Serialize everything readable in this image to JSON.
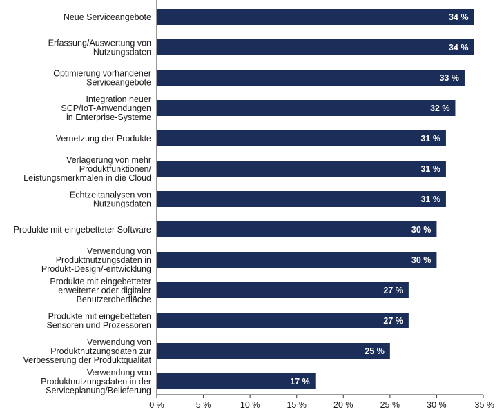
{
  "chart_data": {
    "type": "bar",
    "orientation": "horizontal",
    "categories": [
      [
        "Neue Serviceangebote"
      ],
      [
        "Erfassung/Auswertung von",
        "Nutzungsdaten"
      ],
      [
        "Optimierung vorhandener",
        "Serviceangebote"
      ],
      [
        "Integration neuer",
        "SCP/IoT-Anwendungen",
        "in Enterprise-Systeme"
      ],
      [
        "Vernetzung der Produkte"
      ],
      [
        "Verlagerung von mehr",
        "Produktfunktionen/",
        "Leistungsmerkmalen in die Cloud"
      ],
      [
        "Echtzeitanalysen von",
        "Nutzungsdaten"
      ],
      [
        "Produkte mit eingebetteter Software"
      ],
      [
        "Verwendung von",
        "Produktnutzungsdaten in",
        "Produkt-Design/-entwicklung"
      ],
      [
        "Produkte mit eingebetteter",
        "erweiterter oder digitaler",
        "Benutzeroberfläche"
      ],
      [
        "Produkte mit eingebetteten",
        "Sensoren und Prozessoren"
      ],
      [
        "Verwendung von",
        "Produktnutzungsdaten zur",
        "Verbesserung der Produktqualität"
      ],
      [
        "Verwendung von",
        "Produktnutzungsdaten in der",
        "Serviceplanung/Belieferung"
      ]
    ],
    "values": [
      34,
      34,
      33,
      32,
      31,
      31,
      31,
      30,
      30,
      27,
      27,
      25,
      17
    ],
    "value_labels": [
      "34 %",
      "34 %",
      "33 %",
      "32 %",
      "31 %",
      "31 %",
      "31 %",
      "30 %",
      "30 %",
      "27 %",
      "27 %",
      "25 %",
      "17 %"
    ],
    "xlim": [
      0,
      35
    ],
    "x_ticks": [
      0,
      5,
      10,
      15,
      20,
      25,
      30,
      35
    ],
    "x_tick_labels": [
      "0 %",
      "5 %",
      "10 %",
      "15 %",
      "20 %",
      "25 %",
      "30 %",
      "35 %"
    ],
    "title": "",
    "xlabel": "",
    "ylabel": "",
    "grid": false,
    "bar_color": "#1b2e5a",
    "axis_color": "#333333"
  }
}
